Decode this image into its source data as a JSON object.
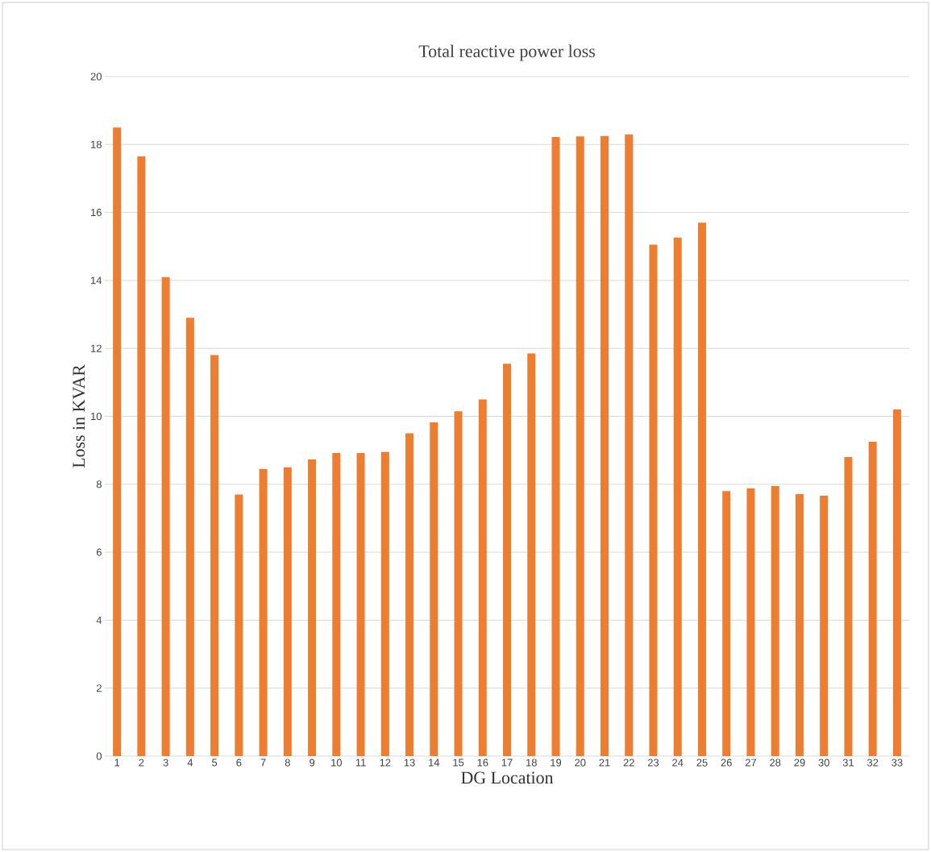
{
  "chart_data": {
    "type": "bar",
    "title": "Total reactive power loss",
    "xlabel": "DG Location",
    "ylabel": "Loss in KVAR",
    "categories": [
      "1",
      "2",
      "3",
      "4",
      "5",
      "6",
      "7",
      "8",
      "9",
      "10",
      "11",
      "12",
      "13",
      "14",
      "15",
      "16",
      "17",
      "18",
      "19",
      "20",
      "21",
      "22",
      "23",
      "24",
      "25",
      "26",
      "27",
      "28",
      "29",
      "30",
      "31",
      "32",
      "33"
    ],
    "values": [
      18.5,
      17.65,
      14.1,
      12.9,
      11.8,
      7.7,
      8.45,
      8.5,
      8.73,
      8.92,
      8.92,
      8.95,
      9.5,
      9.82,
      10.15,
      10.5,
      11.55,
      11.85,
      18.22,
      18.24,
      18.25,
      18.3,
      15.05,
      15.26,
      15.7,
      7.8,
      7.88,
      7.95,
      7.71,
      7.66,
      8.8,
      9.25,
      10.2
    ],
    "color": "#ed7d31",
    "ylim": [
      0,
      20
    ],
    "yticks": [
      0,
      2,
      4,
      6,
      8,
      10,
      12,
      14,
      16,
      18,
      20
    ],
    "grid": "y"
  }
}
